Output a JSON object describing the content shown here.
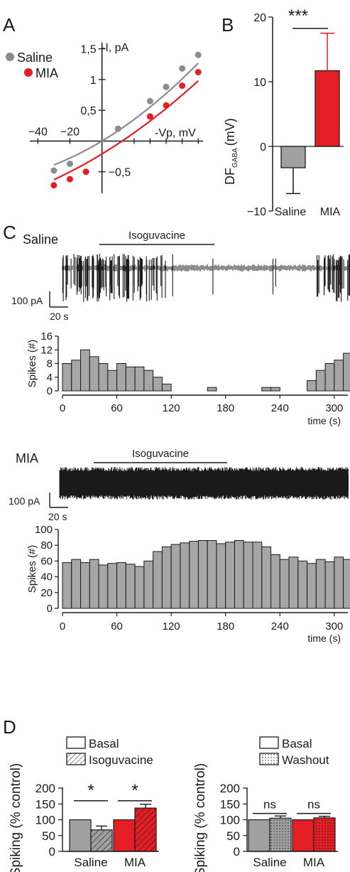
{
  "colors": {
    "saline": "#8c8c8c",
    "saline_bar": "#a0a0a0",
    "mia": "#e31e24",
    "black": "#1a1a1a",
    "hist_bar": "#a6a6a6"
  },
  "panels": {
    "A": "A",
    "B": "B",
    "C": "C",
    "D": "D"
  },
  "chart_data": [
    {
      "type": "scatter",
      "panel": "A",
      "xlabel": "-Vp, mV",
      "ylabel": "-I, pA",
      "x_ticks": [
        -40,
        -20,
        20,
        30,
        40,
        50,
        60
      ],
      "x_tick_labels": [
        "−40",
        "−20"
      ],
      "y_tick_labels": [
        "1,5",
        "1",
        "0,5",
        "−0,5"
      ],
      "y_ticks": [
        1.5,
        1,
        0.5,
        -0.5
      ],
      "xlim": [
        -45,
        63
      ],
      "ylim": [
        -0.85,
        1.6
      ],
      "legend": [
        "Saline",
        "MIA"
      ],
      "series": [
        {
          "name": "Saline",
          "x": [
            -30,
            -20,
            10,
            30,
            40,
            50,
            60
          ],
          "y": [
            -0.48,
            -0.37,
            0.2,
            0.65,
            0.88,
            1.18,
            1.4
          ],
          "fit_x": [
            -30,
            60
          ],
          "fit_a": [
            0.0,
            0.0157,
            9.07e-05
          ]
        },
        {
          "name": "MIA",
          "x": [
            -30,
            -20,
            -10,
            30,
            40,
            50,
            60
          ],
          "y": [
            -0.72,
            -0.62,
            -0.5,
            0.4,
            0.58,
            0.9,
            1.12
          ],
          "fit_x": [
            -30,
            60
          ],
          "fit_a": [
            -0.21,
            0.0159,
            6.53e-05
          ]
        }
      ]
    },
    {
      "type": "bar",
      "panel": "B",
      "ylabel": "DF",
      "ylabel_sub": "GABA",
      "ylabel_unit": "(mV)",
      "categories": [
        "Saline",
        "MIA"
      ],
      "values": [
        -3.3,
        11.7
      ],
      "errors": [
        4.0,
        5.8
      ],
      "ylim": [
        -10,
        20
      ],
      "y_ticks": [
        -10,
        0,
        10,
        20
      ],
      "y_tick_labels": [
        "−10",
        "0",
        "10",
        "20"
      ],
      "significance": "***"
    },
    {
      "type": "bar",
      "panel": "C-Saline-histogram",
      "ylabel": "Spikes (#)",
      "xlabel": "time (s)",
      "bin_start": 0,
      "bin_width": 10,
      "values": [
        8,
        9,
        12,
        10,
        8,
        6,
        8,
        7,
        7,
        6,
        4,
        2,
        0,
        0,
        0,
        0,
        1,
        0,
        0,
        0,
        0,
        0,
        1,
        1,
        0,
        0,
        0,
        3,
        6,
        8,
        9,
        11,
        11
      ],
      "ylim": [
        0,
        16
      ],
      "y_ticks": [
        0,
        4,
        8,
        12,
        16
      ],
      "x_ticks": [
        0,
        60,
        120,
        180,
        240,
        300
      ],
      "xlim": [
        0,
        315
      ]
    },
    {
      "type": "bar",
      "panel": "C-MIA-histogram",
      "ylabel": "Spikes (#)",
      "xlabel": "time (s)",
      "bin_start": 0,
      "bin_width": 10,
      "values": [
        58,
        62,
        58,
        62,
        55,
        57,
        58,
        56,
        53,
        60,
        72,
        78,
        81,
        83,
        85,
        86,
        86,
        82,
        84,
        86,
        84,
        84,
        78,
        68,
        62,
        65,
        60,
        57,
        62,
        59,
        65,
        62
      ],
      "ylim": [
        0,
        100
      ],
      "y_ticks": [
        0,
        20,
        40,
        60,
        80,
        100
      ],
      "x_ticks": [
        0,
        60,
        120,
        180,
        240,
        300
      ],
      "xlim": [
        0,
        315
      ]
    },
    {
      "type": "bar",
      "panel": "D-left",
      "ylabel": "Spiking (% control)",
      "categories": [
        "Saline",
        "MIA"
      ],
      "legend": [
        "Basal",
        "Isoguvacine"
      ],
      "series": [
        {
          "name": "Basal",
          "values": [
            100,
            100
          ],
          "errors": [
            0,
            0
          ]
        },
        {
          "name": "Isoguvacine",
          "values": [
            68,
            137
          ],
          "errors": [
            12,
            12
          ]
        }
      ],
      "significance": [
        "*",
        "*"
      ],
      "ylim": [
        0,
        200
      ],
      "y_ticks": [
        0,
        50,
        100,
        150,
        200
      ]
    },
    {
      "type": "bar",
      "panel": "D-right",
      "ylabel": "Spiking (% control)",
      "categories": [
        "Saline",
        "MIA"
      ],
      "legend": [
        "Basal",
        "Washout"
      ],
      "series": [
        {
          "name": "Basal",
          "values": [
            100,
            100
          ],
          "errors": [
            0,
            0
          ]
        },
        {
          "name": "Washout",
          "values": [
            105,
            106
          ],
          "errors": [
            7,
            5
          ]
        }
      ],
      "significance": [
        "ns",
        "ns"
      ],
      "ylim": [
        0,
        200
      ],
      "y_ticks": [
        0,
        50,
        100,
        150,
        200
      ]
    }
  ],
  "traces": {
    "saline": {
      "label": "Saline",
      "drug_label": "Isoguvacine",
      "scale_current": "100 pA",
      "scale_time": "20 s",
      "spikes_per_bin": [
        8,
        9,
        12,
        10,
        8,
        6,
        8,
        7,
        7,
        6,
        4,
        2,
        0,
        0,
        0,
        0,
        1,
        0,
        0,
        0,
        0,
        0,
        1,
        1,
        0,
        0,
        0,
        3,
        6,
        8,
        9,
        11,
        11
      ]
    },
    "mia": {
      "label": "MIA",
      "drug_label": "Isoguvacine",
      "scale_current": "100 pA",
      "scale_time": "20 s"
    }
  }
}
